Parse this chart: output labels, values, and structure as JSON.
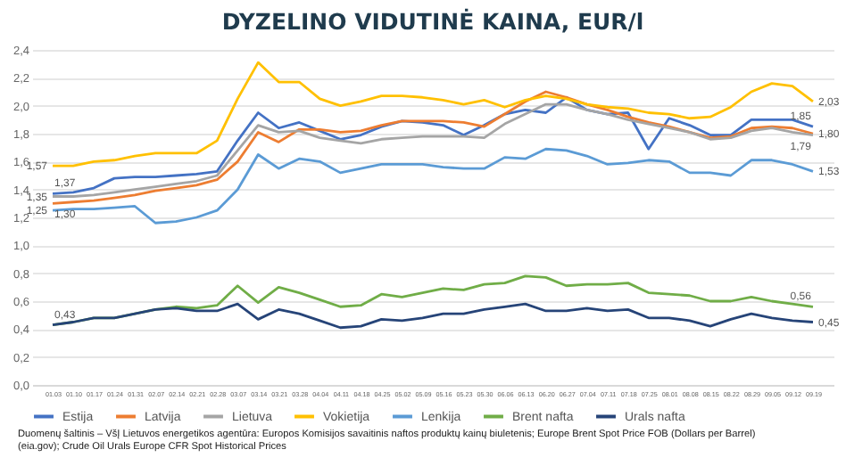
{
  "chart_data": {
    "type": "line",
    "title": "DYZELINO VIDUTINĖ KAINA, EUR/l",
    "categories": [
      "01.03",
      "01.10",
      "01.17",
      "01.24",
      "01.31",
      "02.07",
      "02.14",
      "02.21",
      "02.28",
      "03.07",
      "03.14",
      "03.21",
      "03.28",
      "04.04",
      "04.11",
      "04.18",
      "04.25",
      "05.02",
      "05.09",
      "05.16",
      "05.23",
      "05.30",
      "06.06",
      "06.13",
      "06.20",
      "06.27",
      "07.04",
      "07.11",
      "07.18",
      "07.25",
      "08.01",
      "08.08",
      "08.15",
      "08.22",
      "08.29",
      "09.05",
      "09.12",
      "09.19"
    ],
    "series": [
      {
        "name": "Estija",
        "color": "#4472c4",
        "values": [
          1.37,
          1.38,
          1.41,
          1.48,
          1.49,
          1.49,
          1.5,
          1.51,
          1.53,
          1.75,
          1.95,
          1.84,
          1.88,
          1.82,
          1.76,
          1.79,
          1.85,
          1.89,
          1.88,
          1.86,
          1.79,
          1.86,
          1.94,
          1.97,
          1.95,
          2.06,
          1.97,
          1.94,
          1.95,
          1.69,
          1.91,
          1.86,
          1.79,
          1.79,
          1.9,
          1.9,
          1.9,
          1.85
        ],
        "value_labels": [
          "1,37",
          null,
          null,
          null,
          null,
          null,
          null,
          null,
          null,
          null,
          null,
          null,
          null,
          null,
          null,
          null,
          null,
          null,
          null,
          null,
          null,
          null,
          null,
          null,
          null,
          null,
          null,
          null,
          null,
          null,
          null,
          null,
          null,
          null,
          null,
          null,
          null,
          "1,85"
        ]
      },
      {
        "name": "Latvija",
        "color": "#ed7d31",
        "values": [
          1.3,
          1.31,
          1.32,
          1.34,
          1.36,
          1.39,
          1.41,
          1.43,
          1.47,
          1.6,
          1.81,
          1.74,
          1.83,
          1.83,
          1.81,
          1.82,
          1.86,
          1.89,
          1.89,
          1.89,
          1.88,
          1.85,
          1.94,
          2.03,
          2.1,
          2.06,
          2.01,
          1.97,
          1.92,
          1.88,
          1.85,
          1.81,
          1.77,
          1.78,
          1.84,
          1.85,
          1.84,
          1.8
        ],
        "value_labels": [
          "1,30",
          null,
          null,
          null,
          null,
          null,
          null,
          null,
          null,
          null,
          null,
          null,
          null,
          null,
          null,
          null,
          null,
          null,
          null,
          null,
          null,
          null,
          null,
          null,
          null,
          null,
          null,
          null,
          null,
          null,
          null,
          null,
          null,
          null,
          null,
          null,
          null,
          "1,80"
        ]
      },
      {
        "name": "Lietuva",
        "color": "#a5a5a5",
        "values": [
          1.35,
          1.35,
          1.36,
          1.38,
          1.4,
          1.42,
          1.44,
          1.46,
          1.5,
          1.68,
          1.86,
          1.81,
          1.82,
          1.77,
          1.75,
          1.73,
          1.76,
          1.77,
          1.78,
          1.78,
          1.78,
          1.77,
          1.87,
          1.94,
          2.01,
          2.01,
          1.97,
          1.94,
          1.9,
          1.87,
          1.84,
          1.81,
          1.76,
          1.77,
          1.82,
          1.84,
          1.81,
          1.79
        ],
        "value_labels": [
          "1,35",
          null,
          null,
          null,
          null,
          null,
          null,
          null,
          null,
          null,
          null,
          null,
          null,
          null,
          null,
          null,
          null,
          null,
          null,
          null,
          null,
          null,
          null,
          null,
          null,
          null,
          null,
          null,
          null,
          null,
          null,
          null,
          null,
          null,
          null,
          null,
          null,
          "1,79"
        ]
      },
      {
        "name": "Vokietija",
        "color": "#ffc000",
        "values": [
          1.57,
          1.57,
          1.6,
          1.61,
          1.64,
          1.66,
          1.66,
          1.66,
          1.75,
          2.05,
          2.31,
          2.17,
          2.17,
          2.05,
          2.0,
          2.03,
          2.07,
          2.07,
          2.06,
          2.04,
          2.01,
          2.04,
          1.99,
          2.04,
          2.07,
          2.05,
          2.01,
          1.99,
          1.98,
          1.95,
          1.94,
          1.91,
          1.92,
          1.99,
          2.1,
          2.16,
          2.14,
          2.03
        ],
        "value_labels": [
          "1,57",
          null,
          null,
          null,
          null,
          null,
          null,
          null,
          null,
          null,
          null,
          null,
          null,
          null,
          null,
          null,
          null,
          null,
          null,
          null,
          null,
          null,
          null,
          null,
          null,
          null,
          null,
          null,
          null,
          null,
          null,
          null,
          null,
          null,
          null,
          null,
          null,
          "2,03"
        ]
      },
      {
        "name": "Lenkija",
        "color": "#5b9bd5",
        "values": [
          1.25,
          1.26,
          1.26,
          1.27,
          1.28,
          1.16,
          1.17,
          1.2,
          1.25,
          1.4,
          1.65,
          1.55,
          1.62,
          1.6,
          1.52,
          1.55,
          1.58,
          1.58,
          1.58,
          1.56,
          1.55,
          1.55,
          1.63,
          1.62,
          1.69,
          1.68,
          1.64,
          1.58,
          1.59,
          1.61,
          1.6,
          1.52,
          1.52,
          1.5,
          1.61,
          1.61,
          1.58,
          1.53
        ],
        "value_labels": [
          "1,25",
          null,
          null,
          null,
          null,
          null,
          null,
          null,
          null,
          null,
          null,
          null,
          null,
          null,
          null,
          null,
          null,
          null,
          null,
          null,
          null,
          null,
          null,
          null,
          null,
          null,
          null,
          null,
          null,
          null,
          null,
          null,
          null,
          null,
          null,
          null,
          null,
          "1,53"
        ]
      },
      {
        "name": "Brent nafta",
        "color": "#70ad47",
        "values": [
          0.43,
          0.45,
          0.48,
          0.48,
          0.51,
          0.54,
          0.56,
          0.55,
          0.57,
          0.71,
          0.59,
          0.7,
          0.66,
          0.61,
          0.56,
          0.57,
          0.65,
          0.63,
          0.66,
          0.69,
          0.68,
          0.72,
          0.73,
          0.78,
          0.77,
          0.71,
          0.72,
          0.72,
          0.73,
          0.66,
          0.65,
          0.64,
          0.6,
          0.6,
          0.63,
          0.6,
          0.58,
          0.56
        ],
        "value_labels": [
          null,
          null,
          null,
          null,
          null,
          null,
          null,
          null,
          null,
          null,
          null,
          null,
          null,
          null,
          null,
          null,
          null,
          null,
          null,
          null,
          null,
          null,
          null,
          null,
          null,
          null,
          null,
          null,
          null,
          null,
          null,
          null,
          null,
          null,
          null,
          null,
          null,
          "0,56"
        ]
      },
      {
        "name": "Urals nafta",
        "color": "#264478",
        "values": [
          0.43,
          0.45,
          0.48,
          0.48,
          0.51,
          0.54,
          0.55,
          0.53,
          0.53,
          0.58,
          0.47,
          0.54,
          0.51,
          0.46,
          0.41,
          0.42,
          0.47,
          0.46,
          0.48,
          0.51,
          0.51,
          0.54,
          0.56,
          0.58,
          0.53,
          0.53,
          0.55,
          0.53,
          0.54,
          0.48,
          0.48,
          0.46,
          0.42,
          0.47,
          0.51,
          0.48,
          0.46,
          0.45
        ],
        "value_labels": [
          "0,43",
          null,
          null,
          null,
          null,
          null,
          null,
          null,
          null,
          null,
          null,
          null,
          null,
          null,
          null,
          null,
          null,
          null,
          null,
          null,
          null,
          null,
          null,
          null,
          null,
          null,
          null,
          null,
          null,
          null,
          null,
          null,
          null,
          null,
          null,
          null,
          null,
          "0,45"
        ]
      }
    ],
    "ylim": [
      0,
      2.4
    ],
    "yticks": [
      {
        "value": 0,
        "label": "0,0"
      },
      {
        "value": 0.2,
        "label": "0,2"
      },
      {
        "value": 0.4,
        "label": "0,4"
      },
      {
        "value": 0.6,
        "label": "0,6"
      },
      {
        "value": 0.8,
        "label": "0,8"
      },
      {
        "value": 1,
        "label": "1,0"
      },
      {
        "value": 1.2,
        "label": "1,2"
      },
      {
        "value": 1.4,
        "label": "1,4"
      },
      {
        "value": 1.6,
        "label": "1,6"
      },
      {
        "value": 1.8,
        "label": "1,8"
      },
      {
        "value": 2,
        "label": "2,0"
      },
      {
        "value": 2.2,
        "label": "2,2"
      },
      {
        "value": 2.4,
        "label": "2,4"
      }
    ],
    "grid": "y",
    "legend": "bottom",
    "marker": "none",
    "line_style": "solid",
    "annotations": [
      "Duomenų šaltinis – VšĮ Lietuvos energetikos agentūra: Europos Komisijos savaitinis naftos produktų kainų biuletenis; Europe Brent Spot Price FOB (Dollars per Barrel)",
      "(eia.gov); Crude Oil Urals Europe CFR Spot Historical Prices"
    ]
  }
}
